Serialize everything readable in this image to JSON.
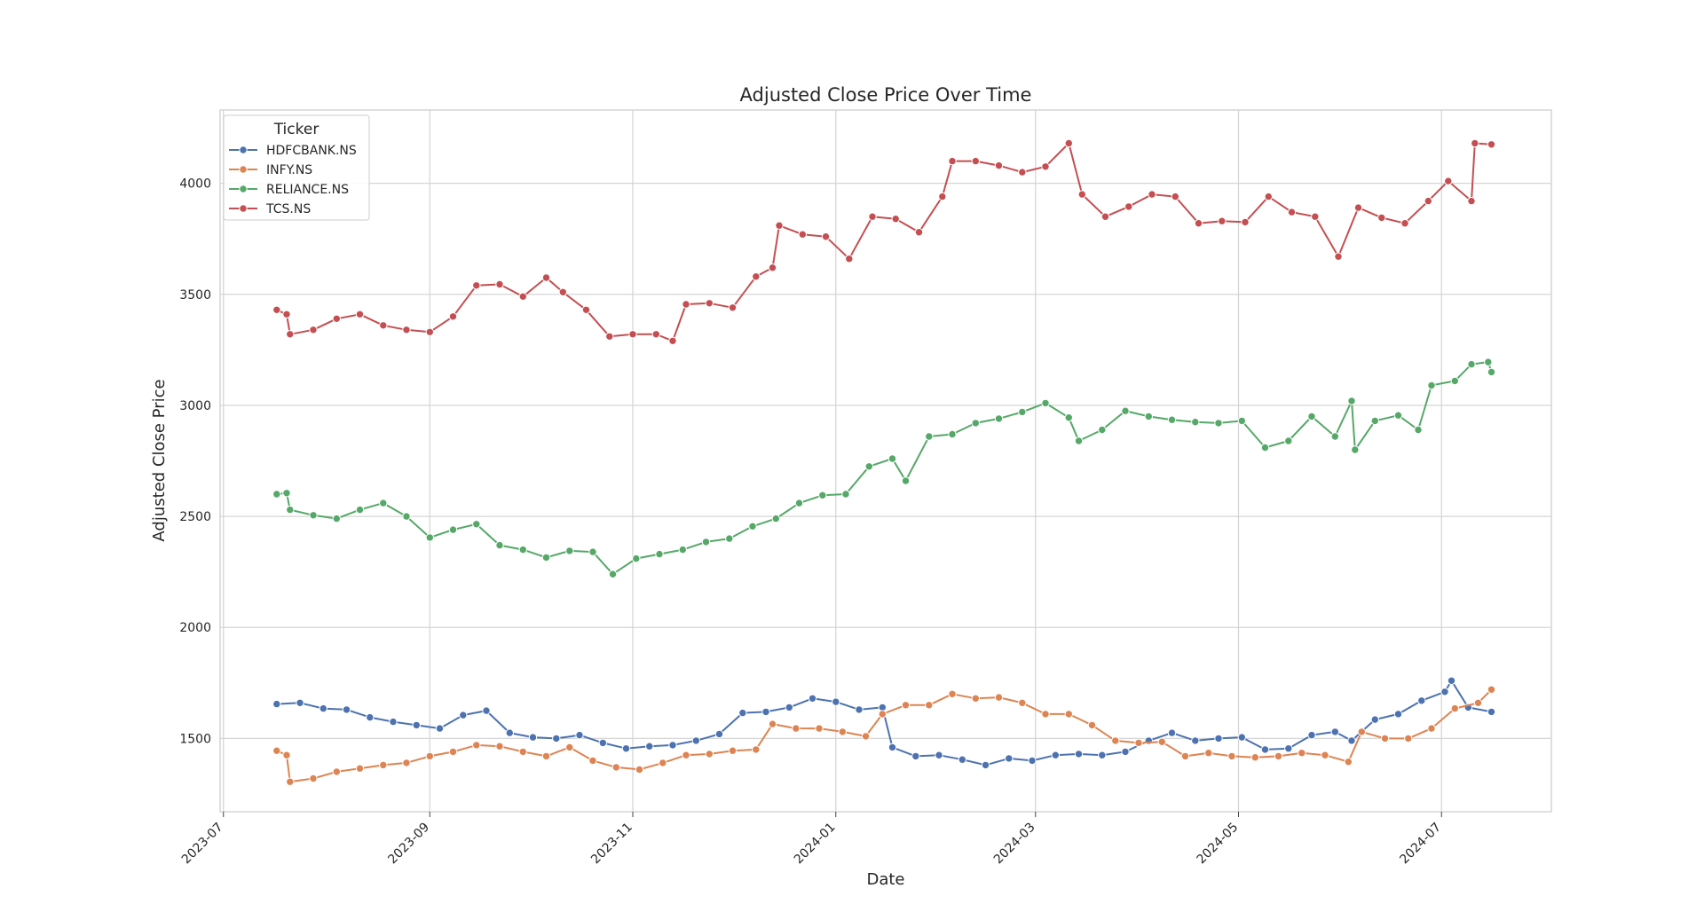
{
  "chart_data": {
    "type": "line",
    "title": "Adjusted Close Price Over Time",
    "xlabel": "Date",
    "ylabel": "Adjusted Close Price",
    "xlim": [
      "2023-06-30",
      "2024-08-03"
    ],
    "ylim": [
      1170,
      4330
    ],
    "x_ticks": [
      "2023-07",
      "2023-09",
      "2023-11",
      "2024-01",
      "2024-03",
      "2024-05",
      "2024-07"
    ],
    "y_ticks": [
      1500,
      2000,
      2500,
      3000,
      3500,
      4000
    ],
    "grid": true,
    "legend": {
      "title": "Ticker",
      "placement": "top-left"
    },
    "series": [
      {
        "name": "HDFCBANK.NS",
        "color": "#4c72b0",
        "points": [
          [
            "2023-07-17",
            1655
          ],
          [
            "2023-07-24",
            1660
          ],
          [
            "2023-07-31",
            1635
          ],
          [
            "2023-08-07",
            1630
          ],
          [
            "2023-08-14",
            1595
          ],
          [
            "2023-08-21",
            1575
          ],
          [
            "2023-08-28",
            1560
          ],
          [
            "2023-09-04",
            1545
          ],
          [
            "2023-09-11",
            1605
          ],
          [
            "2023-09-18",
            1625
          ],
          [
            "2023-09-25",
            1525
          ],
          [
            "2023-10-02",
            1505
          ],
          [
            "2023-10-09",
            1500
          ],
          [
            "2023-10-16",
            1515
          ],
          [
            "2023-10-23",
            1480
          ],
          [
            "2023-10-30",
            1455
          ],
          [
            "2023-11-06",
            1465
          ],
          [
            "2023-11-13",
            1470
          ],
          [
            "2023-11-20",
            1490
          ],
          [
            "2023-11-27",
            1520
          ],
          [
            "2023-12-04",
            1615
          ],
          [
            "2023-12-11",
            1620
          ],
          [
            "2023-12-18",
            1640
          ],
          [
            "2023-12-25",
            1680
          ],
          [
            "2024-01-01",
            1665
          ],
          [
            "2024-01-08",
            1630
          ],
          [
            "2024-01-15",
            1640
          ],
          [
            "2024-01-18",
            1460
          ],
          [
            "2024-01-25",
            1420
          ],
          [
            "2024-02-01",
            1425
          ],
          [
            "2024-02-08",
            1405
          ],
          [
            "2024-02-15",
            1380
          ],
          [
            "2024-02-22",
            1410
          ],
          [
            "2024-02-29",
            1400
          ],
          [
            "2024-03-07",
            1425
          ],
          [
            "2024-03-14",
            1430
          ],
          [
            "2024-03-21",
            1425
          ],
          [
            "2024-03-28",
            1440
          ],
          [
            "2024-04-04",
            1490
          ],
          [
            "2024-04-11",
            1525
          ],
          [
            "2024-04-18",
            1490
          ],
          [
            "2024-04-25",
            1500
          ],
          [
            "2024-05-02",
            1505
          ],
          [
            "2024-05-09",
            1450
          ],
          [
            "2024-05-16",
            1455
          ],
          [
            "2024-05-23",
            1515
          ],
          [
            "2024-05-30",
            1530
          ],
          [
            "2024-06-04",
            1490
          ],
          [
            "2024-06-11",
            1585
          ],
          [
            "2024-06-18",
            1610
          ],
          [
            "2024-06-25",
            1670
          ],
          [
            "2024-07-02",
            1710
          ],
          [
            "2024-07-04",
            1760
          ],
          [
            "2024-07-09",
            1640
          ],
          [
            "2024-07-16",
            1620
          ]
        ]
      },
      {
        "name": "INFY.NS",
        "color": "#dd8452",
        "points": [
          [
            "2023-07-17",
            1445
          ],
          [
            "2023-07-20",
            1425
          ],
          [
            "2023-07-21",
            1305
          ],
          [
            "2023-07-28",
            1320
          ],
          [
            "2023-08-04",
            1350
          ],
          [
            "2023-08-11",
            1365
          ],
          [
            "2023-08-18",
            1380
          ],
          [
            "2023-08-25",
            1390
          ],
          [
            "2023-09-01",
            1420
          ],
          [
            "2023-09-08",
            1440
          ],
          [
            "2023-09-15",
            1470
          ],
          [
            "2023-09-22",
            1465
          ],
          [
            "2023-09-29",
            1440
          ],
          [
            "2023-10-06",
            1420
          ],
          [
            "2023-10-13",
            1460
          ],
          [
            "2023-10-20",
            1400
          ],
          [
            "2023-10-27",
            1370
          ],
          [
            "2023-11-03",
            1360
          ],
          [
            "2023-11-10",
            1390
          ],
          [
            "2023-11-17",
            1425
          ],
          [
            "2023-11-24",
            1430
          ],
          [
            "2023-12-01",
            1445
          ],
          [
            "2023-12-08",
            1450
          ],
          [
            "2023-12-13",
            1565
          ],
          [
            "2023-12-20",
            1545
          ],
          [
            "2023-12-27",
            1545
          ],
          [
            "2024-01-03",
            1530
          ],
          [
            "2024-01-10",
            1510
          ],
          [
            "2024-01-15",
            1610
          ],
          [
            "2024-01-22",
            1650
          ],
          [
            "2024-01-29",
            1650
          ],
          [
            "2024-02-05",
            1700
          ],
          [
            "2024-02-12",
            1680
          ],
          [
            "2024-02-19",
            1685
          ],
          [
            "2024-02-26",
            1660
          ],
          [
            "2024-03-04",
            1610
          ],
          [
            "2024-03-11",
            1610
          ],
          [
            "2024-03-18",
            1560
          ],
          [
            "2024-03-25",
            1490
          ],
          [
            "2024-04-01",
            1480
          ],
          [
            "2024-04-08",
            1485
          ],
          [
            "2024-04-15",
            1420
          ],
          [
            "2024-04-22",
            1435
          ],
          [
            "2024-04-29",
            1420
          ],
          [
            "2024-05-06",
            1415
          ],
          [
            "2024-05-13",
            1420
          ],
          [
            "2024-05-20",
            1435
          ],
          [
            "2024-05-27",
            1425
          ],
          [
            "2024-06-03",
            1395
          ],
          [
            "2024-06-07",
            1530
          ],
          [
            "2024-06-14",
            1500
          ],
          [
            "2024-06-21",
            1500
          ],
          [
            "2024-06-28",
            1545
          ],
          [
            "2024-07-05",
            1635
          ],
          [
            "2024-07-12",
            1660
          ],
          [
            "2024-07-16",
            1720
          ]
        ]
      },
      {
        "name": "RELIANCE.NS",
        "color": "#55a868",
        "points": [
          [
            "2023-07-17",
            2600
          ],
          [
            "2023-07-20",
            2605
          ],
          [
            "2023-07-21",
            2530
          ],
          [
            "2023-07-28",
            2505
          ],
          [
            "2023-08-04",
            2490
          ],
          [
            "2023-08-11",
            2530
          ],
          [
            "2023-08-18",
            2560
          ],
          [
            "2023-08-25",
            2500
          ],
          [
            "2023-09-01",
            2405
          ],
          [
            "2023-09-08",
            2440
          ],
          [
            "2023-09-15",
            2465
          ],
          [
            "2023-09-22",
            2370
          ],
          [
            "2023-09-29",
            2350
          ],
          [
            "2023-10-06",
            2315
          ],
          [
            "2023-10-13",
            2345
          ],
          [
            "2023-10-20",
            2340
          ],
          [
            "2023-10-26",
            2240
          ],
          [
            "2023-11-02",
            2310
          ],
          [
            "2023-11-09",
            2330
          ],
          [
            "2023-11-16",
            2350
          ],
          [
            "2023-11-23",
            2385
          ],
          [
            "2023-11-30",
            2400
          ],
          [
            "2023-12-07",
            2455
          ],
          [
            "2023-12-14",
            2490
          ],
          [
            "2023-12-21",
            2560
          ],
          [
            "2023-12-28",
            2595
          ],
          [
            "2024-01-04",
            2600
          ],
          [
            "2024-01-11",
            2725
          ],
          [
            "2024-01-18",
            2760
          ],
          [
            "2024-01-22",
            2660
          ],
          [
            "2024-01-29",
            2860
          ],
          [
            "2024-02-05",
            2870
          ],
          [
            "2024-02-12",
            2920
          ],
          [
            "2024-02-19",
            2940
          ],
          [
            "2024-02-26",
            2970
          ],
          [
            "2024-03-04",
            3010
          ],
          [
            "2024-03-11",
            2945
          ],
          [
            "2024-03-14",
            2840
          ],
          [
            "2024-03-21",
            2890
          ],
          [
            "2024-03-28",
            2975
          ],
          [
            "2024-04-04",
            2950
          ],
          [
            "2024-04-11",
            2935
          ],
          [
            "2024-04-18",
            2925
          ],
          [
            "2024-04-25",
            2920
          ],
          [
            "2024-05-02",
            2930
          ],
          [
            "2024-05-09",
            2810
          ],
          [
            "2024-05-16",
            2840
          ],
          [
            "2024-05-23",
            2950
          ],
          [
            "2024-05-30",
            2860
          ],
          [
            "2024-06-04",
            3020
          ],
          [
            "2024-06-05",
            2800
          ],
          [
            "2024-06-11",
            2930
          ],
          [
            "2024-06-18",
            2955
          ],
          [
            "2024-06-24",
            2890
          ],
          [
            "2024-06-28",
            3090
          ],
          [
            "2024-07-05",
            3110
          ],
          [
            "2024-07-10",
            3185
          ],
          [
            "2024-07-15",
            3195
          ],
          [
            "2024-07-16",
            3150
          ]
        ]
      },
      {
        "name": "TCS.NS",
        "color": "#c44e52",
        "points": [
          [
            "2023-07-17",
            3430
          ],
          [
            "2023-07-20",
            3410
          ],
          [
            "2023-07-21",
            3320
          ],
          [
            "2023-07-28",
            3340
          ],
          [
            "2023-08-04",
            3390
          ],
          [
            "2023-08-11",
            3410
          ],
          [
            "2023-08-18",
            3360
          ],
          [
            "2023-08-25",
            3340
          ],
          [
            "2023-09-01",
            3330
          ],
          [
            "2023-09-08",
            3400
          ],
          [
            "2023-09-15",
            3540
          ],
          [
            "2023-09-22",
            3545
          ],
          [
            "2023-09-29",
            3490
          ],
          [
            "2023-10-06",
            3575
          ],
          [
            "2023-10-11",
            3510
          ],
          [
            "2023-10-18",
            3430
          ],
          [
            "2023-10-25",
            3310
          ],
          [
            "2023-11-01",
            3320
          ],
          [
            "2023-11-08",
            3320
          ],
          [
            "2023-11-13",
            3290
          ],
          [
            "2023-11-17",
            3455
          ],
          [
            "2023-11-24",
            3460
          ],
          [
            "2023-12-01",
            3440
          ],
          [
            "2023-12-08",
            3580
          ],
          [
            "2023-12-13",
            3620
          ],
          [
            "2023-12-15",
            3810
          ],
          [
            "2023-12-22",
            3770
          ],
          [
            "2023-12-29",
            3760
          ],
          [
            "2024-01-05",
            3660
          ],
          [
            "2024-01-12",
            3850
          ],
          [
            "2024-01-19",
            3840
          ],
          [
            "2024-01-26",
            3780
          ],
          [
            "2024-02-02",
            3940
          ],
          [
            "2024-02-05",
            4100
          ],
          [
            "2024-02-12",
            4100
          ],
          [
            "2024-02-19",
            4080
          ],
          [
            "2024-02-26",
            4050
          ],
          [
            "2024-03-04",
            4075
          ],
          [
            "2024-03-11",
            4180
          ],
          [
            "2024-03-15",
            3950
          ],
          [
            "2024-03-22",
            3850
          ],
          [
            "2024-03-29",
            3895
          ],
          [
            "2024-04-05",
            3950
          ],
          [
            "2024-04-12",
            3940
          ],
          [
            "2024-04-19",
            3820
          ],
          [
            "2024-04-26",
            3830
          ],
          [
            "2024-05-03",
            3825
          ],
          [
            "2024-05-10",
            3940
          ],
          [
            "2024-05-17",
            3870
          ],
          [
            "2024-05-24",
            3850
          ],
          [
            "2024-05-31",
            3670
          ],
          [
            "2024-06-06",
            3890
          ],
          [
            "2024-06-13",
            3845
          ],
          [
            "2024-06-20",
            3820
          ],
          [
            "2024-06-27",
            3920
          ],
          [
            "2024-07-03",
            4010
          ],
          [
            "2024-07-10",
            3920
          ],
          [
            "2024-07-11",
            4180
          ],
          [
            "2024-07-16",
            4175
          ]
        ]
      }
    ]
  }
}
